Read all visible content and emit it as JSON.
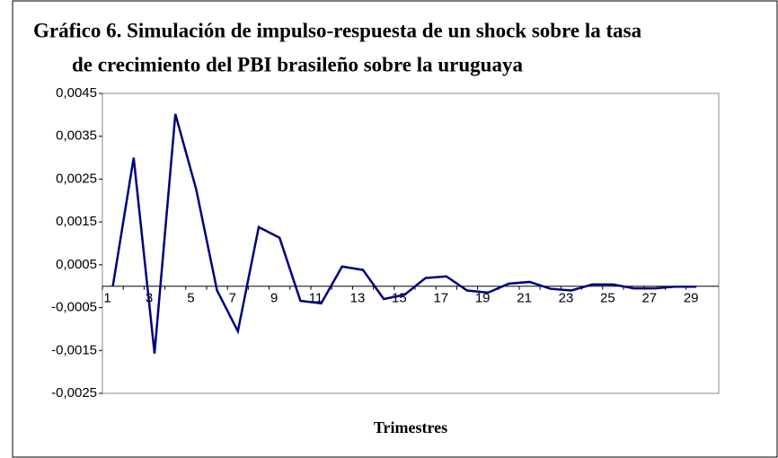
{
  "chart_data": {
    "type": "line",
    "title": [
      "Gráfico 6. Simulación de impulso-respuesta de un shock sobre la tasa",
      "de crecimiento del PBI brasileño sobre la uruguaya"
    ],
    "x_label": "Trimestres",
    "categories": [
      1,
      null,
      3,
      null,
      5,
      null,
      7,
      null,
      9,
      null,
      11,
      null,
      13,
      null,
      15,
      null,
      17,
      null,
      19,
      null,
      21,
      null,
      23,
      null,
      25,
      null,
      27,
      null,
      29
    ],
    "series": [
      {
        "color": "#000080",
        "values": [
          0,
          0.003,
          -0.00157,
          0.00402,
          0.00226,
          -0.0001,
          -0.00105,
          0.00138,
          0.00113,
          -0.00034,
          -0.0004,
          0.00046,
          0.00038,
          -0.0003,
          -0.0002,
          0.00019,
          0.00023,
          -0.0001,
          -0.00015,
          6e-05,
          0.0001,
          -6e-05,
          -0.0001,
          4e-05,
          4e-05,
          -5e-05,
          -5e-05,
          -1e-05,
          -1e-05
        ]
      }
    ],
    "ylim": [
      -0.0025,
      0.0045
    ],
    "yticks": [
      {
        "value": -0.0025,
        "label": "-0,0025"
      },
      {
        "value": -0.0015,
        "label": "-0,0015"
      },
      {
        "value": -0.0005,
        "label": "-0,0005"
      },
      {
        "value": 0.0005,
        "label": "0,0005"
      },
      {
        "value": 0.0015,
        "label": "0,0015"
      },
      {
        "value": 0.0025,
        "label": "0,0025"
      },
      {
        "value": 0.0035,
        "label": "0,0035"
      },
      {
        "value": 0.0045,
        "label": "0,0045"
      }
    ],
    "grid": false
  }
}
